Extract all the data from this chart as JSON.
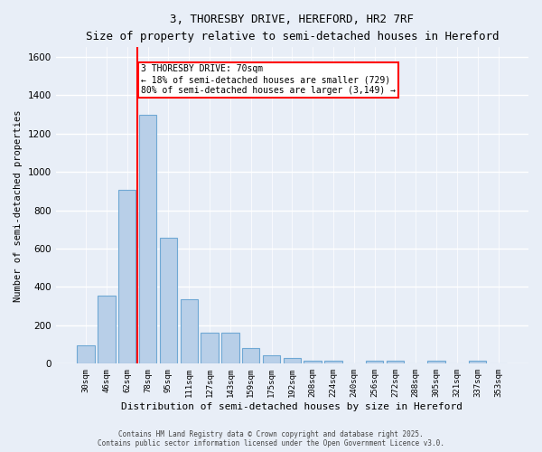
{
  "title": "3, THORESBY DRIVE, HEREFORD, HR2 7RF",
  "subtitle": "Size of property relative to semi-detached houses in Hereford",
  "xlabel": "Distribution of semi-detached houses by size in Hereford",
  "ylabel": "Number of semi-detached properties",
  "categories": [
    "30sqm",
    "46sqm",
    "62sqm",
    "78sqm",
    "95sqm",
    "111sqm",
    "127sqm",
    "143sqm",
    "159sqm",
    "175sqm",
    "192sqm",
    "208sqm",
    "224sqm",
    "240sqm",
    "256sqm",
    "272sqm",
    "288sqm",
    "305sqm",
    "321sqm",
    "337sqm",
    "353sqm"
  ],
  "values": [
    95,
    355,
    905,
    1300,
    655,
    335,
    160,
    160,
    80,
    45,
    28,
    14,
    14,
    0,
    14,
    14,
    0,
    14,
    0,
    14,
    0
  ],
  "bar_color": "#b8cfe8",
  "bar_edge_color": "#6fa8d4",
  "vline_color": "red",
  "annotation_text": "3 THORESBY DRIVE: 70sqm\n← 18% of semi-detached houses are smaller (729)\n80% of semi-detached houses are larger (3,149) →",
  "annotation_box_color": "white",
  "annotation_box_edge_color": "red",
  "ylim": [
    0,
    1650
  ],
  "yticks": [
    0,
    200,
    400,
    600,
    800,
    1000,
    1200,
    1400,
    1600
  ],
  "background_color": "#e8eef7",
  "grid_color": "white",
  "footer_line1": "Contains HM Land Registry data © Crown copyright and database right 2025.",
  "footer_line2": "Contains public sector information licensed under the Open Government Licence v3.0."
}
